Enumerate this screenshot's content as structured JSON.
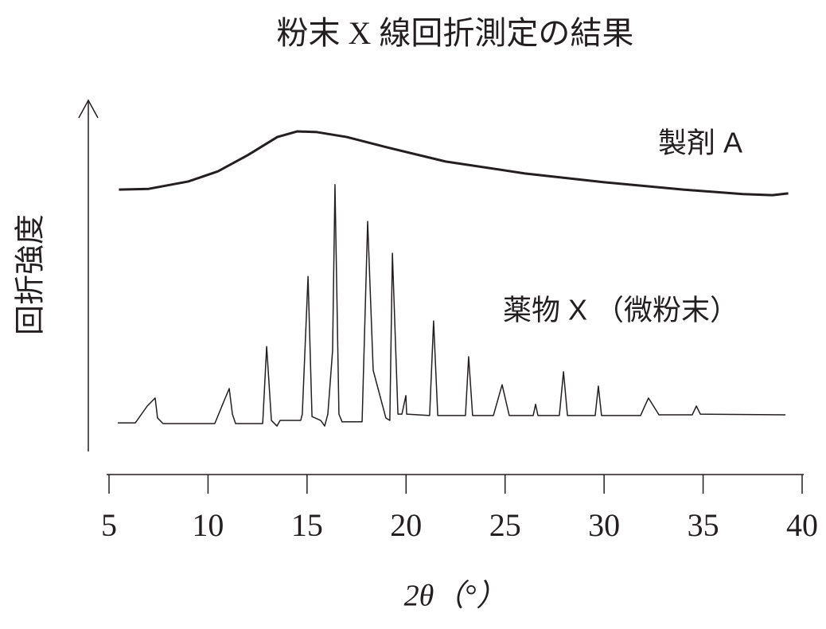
{
  "chart_data": {
    "type": "line",
    "title": "粉末 X 線回折測定の結果",
    "xlabel": "2θ（°）",
    "ylabel": "回折強度",
    "xlim": [
      5,
      40
    ],
    "xticks": [
      5,
      10,
      15,
      20,
      25,
      30,
      35,
      40
    ],
    "ylim": [
      0,
      100
    ],
    "series": [
      {
        "name": "製剤 A",
        "color": "#231f20",
        "x": [
          5.5,
          7,
          9,
          10.5,
          12,
          13.5,
          14.5,
          15.5,
          17,
          19,
          22,
          26,
          30,
          34,
          37,
          38.5,
          39.3
        ],
        "values": [
          74.3,
          74.5,
          76.6,
          79.5,
          84.1,
          89.3,
          90.9,
          90.7,
          89.3,
          86.4,
          82.3,
          78.9,
          76.4,
          74.3,
          73.0,
          72.7,
          73.2
        ]
      },
      {
        "name": "薬物 X （微粉末）",
        "color": "#231f20",
        "x": [
          5.44,
          6.33,
          6.93,
          7.33,
          7.45,
          7.73,
          10.34,
          10.87,
          11.07,
          11.23,
          11.39,
          12.76,
          12.96,
          13.2,
          13.48,
          13.64,
          14.68,
          14.76,
          15.05,
          15.25,
          15.69,
          15.89,
          16.05,
          16.29,
          16.41,
          16.61,
          16.77,
          17.78,
          18.06,
          18.34,
          18.98,
          19.18,
          19.31,
          19.59,
          19.79,
          19.99,
          20.03,
          21.19,
          21.39,
          21.6,
          23.0,
          23.16,
          23.36,
          24.41,
          24.85,
          25.21,
          26.42,
          26.54,
          26.66,
          27.74,
          27.95,
          28.15,
          29.55,
          29.71,
          29.87,
          31.84,
          32.24,
          32.77,
          34.45,
          34.66,
          34.86,
          39.16
        ],
        "values": [
          7.7,
          7.7,
          12.5,
          14.8,
          9.1,
          7.5,
          7.5,
          14.8,
          17.5,
          10.2,
          7.5,
          7.5,
          29.5,
          8.4,
          6.8,
          8.4,
          8.4,
          10.2,
          49.5,
          9.5,
          8.4,
          6.8,
          10.2,
          28.4,
          75.7,
          10.2,
          8.0,
          8.0,
          65.2,
          22.7,
          9.1,
          8.4,
          56.1,
          10.2,
          10.2,
          15.5,
          10.2,
          9.8,
          36.8,
          9.8,
          9.8,
          26.6,
          9.8,
          9.8,
          18.6,
          9.8,
          9.8,
          13.0,
          9.8,
          9.8,
          22.3,
          9.8,
          9.8,
          18.2,
          9.8,
          9.8,
          14.8,
          10.0,
          10.0,
          12.5,
          10.2,
          10.0
        ]
      }
    ]
  }
}
